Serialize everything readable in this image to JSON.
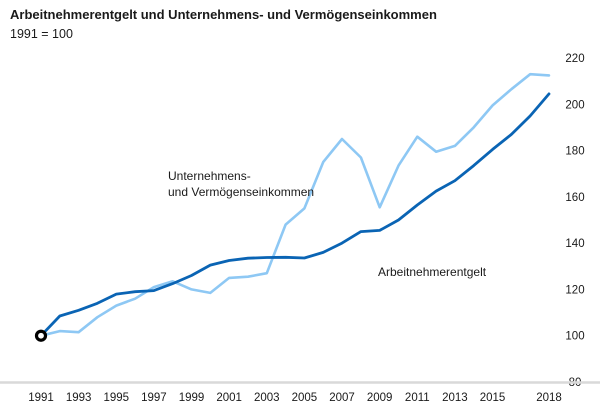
{
  "title": "Arbeitnehmerentgelt und Unternehmens- und Vermögenseinkommen",
  "subtitle": "1991 = 100",
  "chart_data": {
    "type": "line",
    "title": "Arbeitnehmerentgelt und Unternehmens- und Vermögenseinkommen",
    "subtitle": "1991 = 100",
    "x": [
      1991,
      1992,
      1993,
      1994,
      1995,
      1996,
      1997,
      1998,
      1999,
      2000,
      2001,
      2002,
      2003,
      2004,
      2005,
      2006,
      2007,
      2008,
      2009,
      2010,
      2011,
      2012,
      2013,
      2014,
      2015,
      2016,
      2017,
      2018
    ],
    "x_tick_labels": [
      "1991",
      "1993",
      "1995",
      "1997",
      "1999",
      "2001",
      "2003",
      "2005",
      "2007",
      "2009",
      "2011",
      "2013",
      "2015",
      "2018"
    ],
    "y_tick_labels": [
      "80",
      "100",
      "120",
      "140",
      "160",
      "180",
      "200",
      "220"
    ],
    "ylim": [
      80,
      220
    ],
    "xlim": [
      1991,
      2018
    ],
    "grid": false,
    "y_axis_side": "right",
    "series": [
      {
        "name": "Arbeitnehmerentgelt",
        "label_lines": [
          "Arbeitnehmerentgelt"
        ],
        "color": "#0a64b4",
        "values": [
          100,
          108.5,
          111,
          114,
          118,
          119,
          119.5,
          122.5,
          126,
          130.5,
          132.5,
          133.5,
          133.8,
          133.9,
          133.6,
          136,
          140,
          145,
          145.5,
          150,
          156.5,
          162.5,
          167,
          173.5,
          180.5,
          187,
          195,
          204.5
        ]
      },
      {
        "name": "Unternehmens- und Vermögenseinkommen",
        "label_lines": [
          "Unternehmens-",
          "und Vermögenseinkommen"
        ],
        "color": "#8ec8f4",
        "values": [
          100,
          102,
          101.5,
          108,
          113,
          116,
          121,
          123.5,
          120,
          118.5,
          125,
          125.5,
          127,
          148,
          155,
          175,
          185,
          177,
          155.5,
          173.5,
          186,
          179.5,
          182,
          190,
          199.5,
          206.5,
          213,
          212.5
        ]
      }
    ],
    "base_marker": {
      "x": 1991,
      "y": 100
    }
  }
}
